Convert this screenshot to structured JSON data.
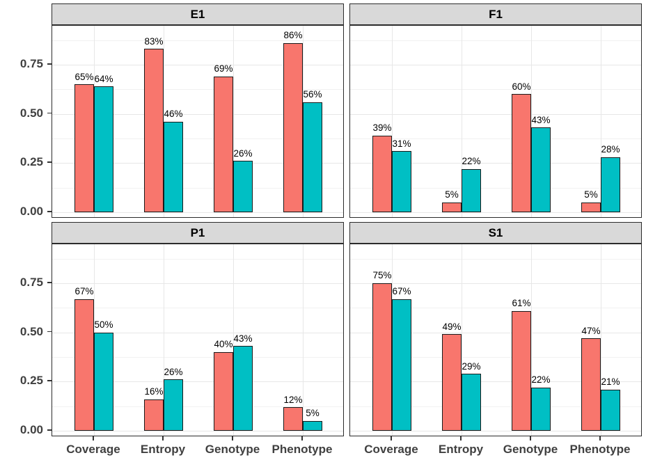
{
  "chart_data": {
    "type": "bar",
    "layout_hint": "2x2 facet grid, grouped bars, no legend, grid on, panel borders, gray facet strips",
    "categories": [
      "Coverage",
      "Entropy",
      "Genotype",
      "Phenotype"
    ],
    "y_axis": {
      "tick_labels": [
        "0.00",
        "0.25",
        "0.50",
        "0.75"
      ],
      "tick_values": [
        0,
        0.25,
        0.5,
        0.75
      ],
      "minor_values": [
        0.125,
        0.375,
        0.625,
        0.875
      ],
      "ylim_shown": [
        -0.03,
        0.95
      ]
    },
    "value_unit": "%",
    "facets": [
      {
        "label": "E1",
        "series": [
          {
            "key": "series-red",
            "color": "#F8766D",
            "values_pct": [
              65,
              83,
              69,
              86
            ],
            "labels": [
              "65%",
              "83%",
              "69%",
              "86%"
            ]
          },
          {
            "key": "series-teal",
            "color": "#00BFC4",
            "values_pct": [
              64,
              46,
              26,
              56
            ],
            "labels": [
              "64%",
              "46%",
              "26%",
              "56%"
            ]
          }
        ]
      },
      {
        "label": "F1",
        "series": [
          {
            "key": "series-red",
            "color": "#F8766D",
            "values_pct": [
              39,
              5,
              60,
              5
            ],
            "labels": [
              "39%",
              "5%",
              "60%",
              "5%"
            ]
          },
          {
            "key": "series-teal",
            "color": "#00BFC4",
            "values_pct": [
              31,
              22,
              43,
              28
            ],
            "labels": [
              "31%",
              "22%",
              "43%",
              "28%"
            ]
          }
        ]
      },
      {
        "label": "P1",
        "series": [
          {
            "key": "series-red",
            "color": "#F8766D",
            "values_pct": [
              67,
              16,
              40,
              12
            ],
            "labels": [
              "67%",
              "16%",
              "40%",
              "12%"
            ]
          },
          {
            "key": "series-teal",
            "color": "#00BFC4",
            "values_pct": [
              50,
              26,
              43,
              5
            ],
            "labels": [
              "50%",
              "26%",
              "43%",
              "5%"
            ]
          }
        ]
      },
      {
        "label": "S1",
        "series": [
          {
            "key": "series-red",
            "color": "#F8766D",
            "values_pct": [
              75,
              49,
              61,
              47
            ],
            "labels": [
              "75%",
              "49%",
              "61%",
              "47%"
            ]
          },
          {
            "key": "series-teal",
            "color": "#00BFC4",
            "values_pct": [
              67,
              29,
              22,
              21
            ],
            "labels": [
              "67%",
              "29%",
              "22%",
              "21%"
            ]
          }
        ]
      }
    ],
    "style": {
      "bar_color_1": "#F8766D",
      "bar_color_2": "#00BFC4",
      "bar_outline": "#1a1a1a",
      "strip_bg": "#D9D9D9",
      "panel_border": "#2B2B2B",
      "grid_major": "#E7E7E7",
      "grid_minor": "#F1F1F1",
      "axis_text_color": "#404040",
      "bar_label_color": "#000000"
    }
  }
}
